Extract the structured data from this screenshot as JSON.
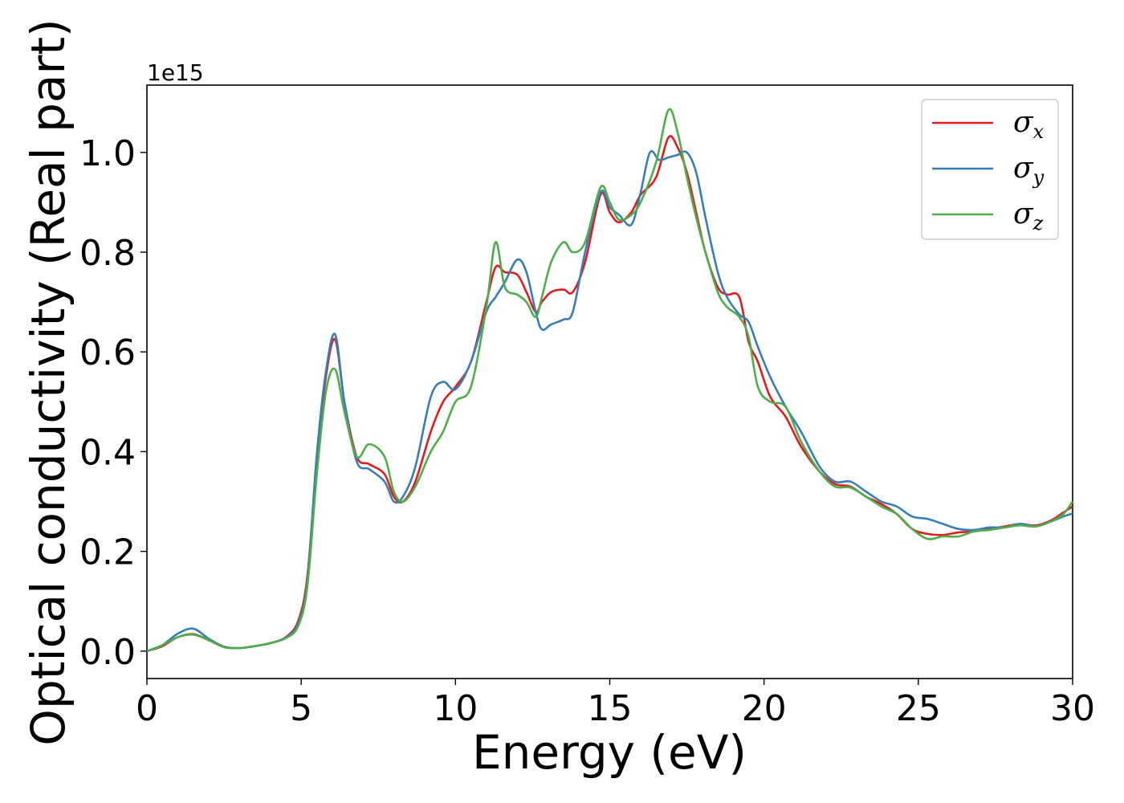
{
  "chart_data": {
    "type": "line",
    "xlabel": "Energy (eV)",
    "ylabel": "Optical conductivity (Real part)",
    "y_offset_label": "1e15",
    "xlim": [
      0,
      30
    ],
    "ylim": [
      -0.055,
      1.135
    ],
    "xticks": [
      0,
      5,
      10,
      15,
      20,
      25,
      30
    ],
    "xtick_labels": [
      "0",
      "5",
      "10",
      "15",
      "20",
      "25",
      "30"
    ],
    "yticks": [
      0.0,
      0.2,
      0.4,
      0.6,
      0.8,
      1.0
    ],
    "ytick_labels": [
      "0.0",
      "0.2",
      "0.4",
      "0.6",
      "0.8",
      "1.0"
    ],
    "grid": false,
    "legend_position": "top-right",
    "series": [
      {
        "name": "σx",
        "sub": "x",
        "color": "#e41a1c",
        "x": [
          0,
          0.5,
          1.0,
          1.5,
          2.0,
          2.5,
          3.0,
          3.5,
          4.0,
          4.5,
          4.9,
          5.2,
          5.5,
          5.8,
          6.1,
          6.4,
          6.8,
          7.2,
          7.7,
          8.0,
          8.3,
          8.7,
          9.2,
          9.6,
          10.0,
          10.5,
          11.0,
          11.3,
          11.6,
          12.0,
          12.3,
          12.6,
          12.8,
          13.1,
          13.5,
          13.8,
          14.2,
          14.7,
          15.0,
          15.3,
          15.7,
          16.0,
          16.5,
          16.9,
          17.2,
          17.5,
          17.8,
          18.1,
          18.5,
          18.8,
          19.2,
          19.5,
          19.8,
          20.2,
          20.7,
          21.2,
          21.8,
          22.3,
          22.8,
          23.3,
          23.8,
          24.3,
          24.8,
          25.3,
          25.8,
          26.3,
          26.8,
          27.3,
          27.8,
          28.3,
          28.8,
          29.3,
          29.7,
          30.0
        ],
        "values": [
          0.0,
          0.01,
          0.028,
          0.034,
          0.022,
          0.008,
          0.006,
          0.01,
          0.016,
          0.028,
          0.06,
          0.15,
          0.38,
          0.55,
          0.625,
          0.5,
          0.39,
          0.375,
          0.355,
          0.31,
          0.3,
          0.34,
          0.44,
          0.5,
          0.53,
          0.58,
          0.7,
          0.77,
          0.76,
          0.755,
          0.72,
          0.68,
          0.7,
          0.72,
          0.725,
          0.72,
          0.78,
          0.915,
          0.88,
          0.86,
          0.88,
          0.915,
          0.95,
          1.03,
          1.01,
          0.96,
          0.88,
          0.8,
          0.73,
          0.715,
          0.71,
          0.62,
          0.58,
          0.51,
          0.47,
          0.41,
          0.36,
          0.335,
          0.33,
          0.31,
          0.295,
          0.275,
          0.245,
          0.235,
          0.233,
          0.238,
          0.24,
          0.245,
          0.25,
          0.255,
          0.252,
          0.262,
          0.278,
          0.29
        ]
      },
      {
        "name": "σy",
        "sub": "y",
        "color": "#377eb8",
        "x": [
          0,
          0.5,
          1.0,
          1.5,
          2.0,
          2.5,
          3.0,
          3.5,
          4.0,
          4.5,
          4.9,
          5.2,
          5.5,
          5.8,
          6.1,
          6.4,
          6.8,
          7.2,
          7.7,
          8.0,
          8.3,
          8.7,
          9.2,
          9.6,
          10.0,
          10.5,
          11.0,
          11.3,
          11.6,
          12.0,
          12.3,
          12.6,
          12.8,
          13.1,
          13.5,
          13.8,
          14.2,
          14.7,
          15.0,
          15.3,
          15.7,
          16.0,
          16.3,
          16.6,
          16.9,
          17.2,
          17.5,
          17.8,
          18.1,
          18.5,
          18.8,
          19.2,
          19.5,
          19.8,
          20.2,
          20.7,
          21.2,
          21.8,
          22.3,
          22.8,
          23.3,
          23.8,
          24.3,
          24.8,
          25.3,
          25.8,
          26.3,
          26.8,
          27.3,
          27.8,
          28.3,
          28.8,
          29.3,
          29.7,
          30.0
        ],
        "values": [
          0.0,
          0.012,
          0.035,
          0.045,
          0.025,
          0.009,
          0.006,
          0.01,
          0.016,
          0.027,
          0.055,
          0.14,
          0.39,
          0.56,
          0.635,
          0.5,
          0.38,
          0.365,
          0.34,
          0.3,
          0.31,
          0.37,
          0.51,
          0.54,
          0.525,
          0.58,
          0.68,
          0.71,
          0.74,
          0.785,
          0.76,
          0.68,
          0.645,
          0.655,
          0.665,
          0.68,
          0.8,
          0.92,
          0.89,
          0.875,
          0.855,
          0.92,
          1.0,
          0.985,
          0.99,
          0.995,
          1.0,
          0.96,
          0.87,
          0.76,
          0.71,
          0.675,
          0.66,
          0.61,
          0.55,
          0.49,
          0.44,
          0.37,
          0.34,
          0.34,
          0.32,
          0.3,
          0.29,
          0.27,
          0.265,
          0.255,
          0.245,
          0.243,
          0.248,
          0.248,
          0.255,
          0.25,
          0.26,
          0.27,
          0.276
        ]
      },
      {
        "name": "σz",
        "sub": "z",
        "color": "#4daf4a",
        "x": [
          0,
          0.5,
          1.0,
          1.5,
          2.0,
          2.5,
          3.0,
          3.5,
          4.0,
          4.5,
          4.9,
          5.2,
          5.5,
          5.8,
          6.1,
          6.4,
          6.8,
          7.2,
          7.7,
          8.0,
          8.3,
          8.7,
          9.2,
          9.6,
          10.0,
          10.5,
          11.0,
          11.3,
          11.6,
          12.0,
          12.3,
          12.6,
          12.8,
          13.1,
          13.5,
          13.8,
          14.2,
          14.7,
          15.0,
          15.3,
          15.7,
          16.0,
          16.5,
          16.9,
          17.2,
          17.5,
          17.8,
          18.1,
          18.5,
          18.8,
          19.2,
          19.5,
          19.8,
          20.2,
          20.7,
          21.2,
          21.8,
          22.3,
          22.8,
          23.3,
          23.8,
          24.3,
          24.8,
          25.3,
          25.8,
          26.3,
          26.8,
          27.3,
          27.8,
          28.3,
          28.8,
          29.3,
          29.7,
          30.0
        ],
        "values": [
          0.0,
          0.012,
          0.028,
          0.033,
          0.022,
          0.008,
          0.006,
          0.01,
          0.016,
          0.026,
          0.05,
          0.13,
          0.35,
          0.52,
          0.565,
          0.48,
          0.39,
          0.415,
          0.39,
          0.32,
          0.3,
          0.33,
          0.4,
          0.44,
          0.5,
          0.53,
          0.69,
          0.82,
          0.73,
          0.715,
          0.7,
          0.67,
          0.71,
          0.78,
          0.82,
          0.8,
          0.82,
          0.93,
          0.9,
          0.865,
          0.875,
          0.9,
          0.98,
          1.085,
          1.04,
          0.95,
          0.87,
          0.8,
          0.72,
          0.69,
          0.67,
          0.63,
          0.53,
          0.5,
          0.49,
          0.42,
          0.36,
          0.33,
          0.328,
          0.31,
          0.29,
          0.275,
          0.245,
          0.225,
          0.23,
          0.23,
          0.24,
          0.243,
          0.248,
          0.252,
          0.25,
          0.26,
          0.275,
          0.3
        ]
      }
    ]
  }
}
